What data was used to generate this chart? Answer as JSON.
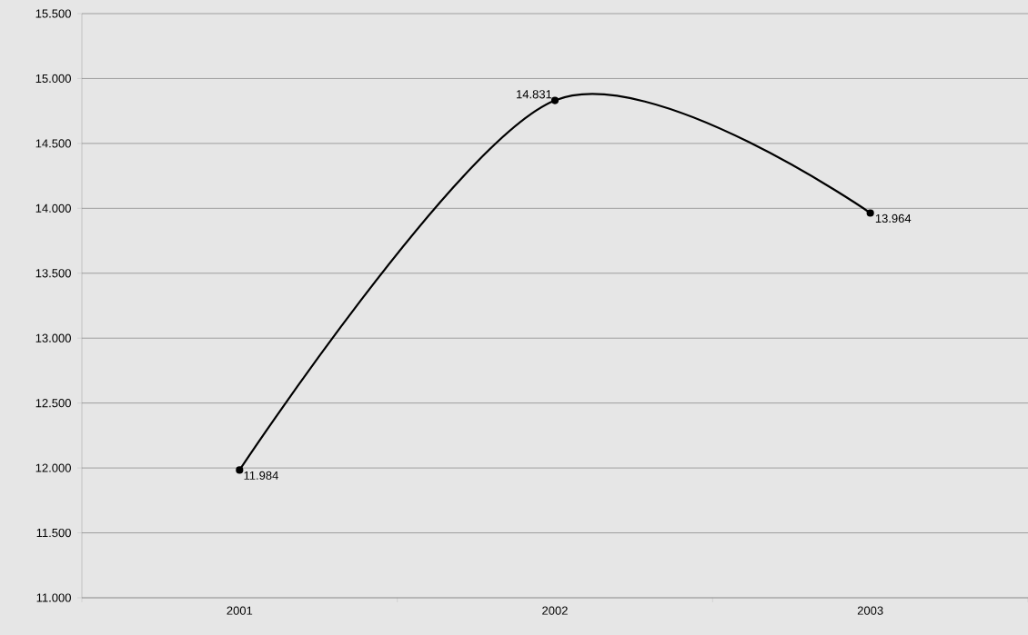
{
  "chart_data": {
    "type": "line",
    "categories": [
      "2001",
      "2002",
      "2003"
    ],
    "values": [
      11984,
      14831,
      13964
    ],
    "value_labels": [
      "11.984",
      "14.831",
      "13.964"
    ],
    "color": "#000000",
    "marker": "circle",
    "line_style": "solid",
    "grid": "y",
    "ylim": [
      11000,
      15500
    ],
    "yticks": [
      {
        "value": 11000,
        "label": "11.000"
      },
      {
        "value": 11500,
        "label": "11.500"
      },
      {
        "value": 12000,
        "label": "12.000"
      },
      {
        "value": 12500,
        "label": "12.500"
      },
      {
        "value": 13000,
        "label": "13.000"
      },
      {
        "value": 13500,
        "label": "13.500"
      },
      {
        "value": 14000,
        "label": "14.000"
      },
      {
        "value": 14500,
        "label": "14.500"
      },
      {
        "value": 15000,
        "label": "15.000"
      },
      {
        "value": 15500,
        "label": "15.500"
      }
    ]
  }
}
